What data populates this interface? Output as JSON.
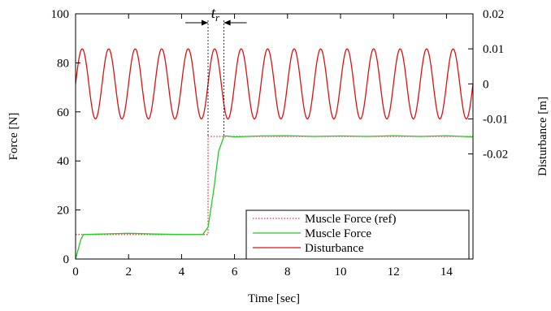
{
  "chart_data": {
    "type": "line",
    "xlabel": "Time [sec]",
    "ylabel": "Force [N]",
    "y2label": "Disturbance [m]",
    "xlim": [
      0,
      15
    ],
    "ylim": [
      0,
      100
    ],
    "y2lim": [
      -0.05,
      0.02
    ],
    "xticks": [
      "0",
      "2",
      "4",
      "6",
      "8",
      "10",
      "12",
      "14"
    ],
    "yticks": [
      "0",
      "20",
      "40",
      "60",
      "80",
      "100"
    ],
    "y2ticks": [
      "-0.02",
      "-0.01",
      "0",
      "0.01",
      "0.02"
    ],
    "grid": false,
    "legend_position": "bottom-right",
    "annotation": {
      "base": "t",
      "sub": "r",
      "x_start": 5.0,
      "x_end": 5.6
    },
    "series": [
      {
        "name": "Muscle Force (ref)",
        "color": "#e8323c",
        "style": "dotted",
        "axis": "left",
        "x": [
          0,
          5.0,
          5.0,
          15
        ],
        "y": [
          10,
          10,
          50,
          50
        ]
      },
      {
        "name": "Muscle Force",
        "color": "#22cc22",
        "style": "solid",
        "axis": "left",
        "x": [
          0,
          0.1,
          0.2,
          0.3,
          1,
          2,
          3,
          4,
          4.8,
          5.0,
          5.2,
          5.4,
          5.6,
          5.7,
          6,
          7,
          8,
          9,
          10,
          11,
          12,
          13,
          14,
          15
        ],
        "y": [
          0,
          4,
          8,
          10,
          10.2,
          10.5,
          10.2,
          10,
          10,
          13,
          27,
          44,
          50,
          50.2,
          49.8,
          50.2,
          50.3,
          50,
          50.2,
          50,
          50.3,
          50,
          50.3,
          49.8
        ]
      },
      {
        "name": "Disturbance",
        "color": "#dd1111",
        "style": "solid",
        "axis": "right",
        "waveform": "sine",
        "amplitude": 0.01,
        "period": 1.0,
        "phase_at_zero": 0.0,
        "x_range": [
          0,
          15
        ]
      }
    ]
  }
}
